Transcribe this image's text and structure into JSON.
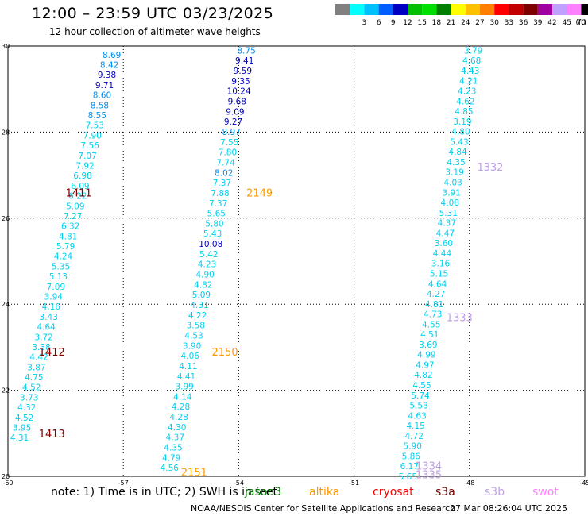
{
  "title": "12:00 – 23:59 UTC 03/23/2025",
  "subtitle": "12 hour collection of altimeter wave heights",
  "legend": {
    "unit": "(ft)",
    "entries": [
      {
        "label": "",
        "color": "#808080"
      },
      {
        "label": "3",
        "color": "#00ffff"
      },
      {
        "label": "6",
        "color": "#00c0ff"
      },
      {
        "label": "9",
        "color": "#0060ff"
      },
      {
        "label": "12",
        "color": "#0000c0"
      },
      {
        "label": "15",
        "color": "#00c000"
      },
      {
        "label": "18",
        "color": "#00e000"
      },
      {
        "label": "21",
        "color": "#008000"
      },
      {
        "label": "24",
        "color": "#ffff00"
      },
      {
        "label": "27",
        "color": "#ffc000"
      },
      {
        "label": "30",
        "color": "#ff8000"
      },
      {
        "label": "33",
        "color": "#ff0000"
      },
      {
        "label": "36",
        "color": "#c00000"
      },
      {
        "label": "39",
        "color": "#800000"
      },
      {
        "label": "42",
        "color": "#a000a0"
      },
      {
        "label": "45",
        "color": "#c0a0ff"
      },
      {
        "label": "70",
        "color": "#ff80ff"
      },
      {
        "label": "",
        "color": "#000000"
      }
    ]
  },
  "axes": {
    "lon_min": -60,
    "lon_max": -45,
    "lat_min": 20,
    "lat_max": 30,
    "x_ticks": [
      "-60",
      "-57",
      "-54",
      "-51",
      "-48",
      "-45"
    ],
    "y_ticks": [
      "20",
      "22",
      "24",
      "26",
      "28",
      "30"
    ],
    "grid": true
  },
  "colors": {
    "tiny": "#00d0f0",
    "small": "#0000c0",
    "pass_1411": "#800000",
    "pass_2149": "#ff9900",
    "pass_1332": "#c0a0e8"
  },
  "tracks": [
    {
      "start": [
        -57.3,
        29.8
      ],
      "end": [
        -59.7,
        20.9
      ],
      "values": [
        "8.69",
        "8.42",
        "9.38",
        "9.71",
        "8.60",
        "8.58",
        "8.55",
        "7.53",
        "7.90",
        "7.56",
        "7.07",
        "7.92",
        "6.98",
        "6.09",
        "6.22",
        "5.09",
        "7.27",
        "6.32",
        "4.81",
        "5.79",
        "4.24",
        "5.35",
        "5.13",
        "7.09",
        "3.94",
        "4.16",
        "3.43",
        "4.64",
        "3.72",
        "3.38",
        "4.42",
        "3.87",
        "4.75",
        "4.52",
        "3.73",
        "4.32",
        "4.52",
        "3.95",
        "4.31"
      ]
    },
    {
      "start": [
        -53.8,
        29.9
      ],
      "end": [
        -55.8,
        20.2
      ],
      "values": [
        "8.75",
        "9.41",
        "9.59",
        "9.35",
        "10.24",
        "9.68",
        "9.09",
        "9.27",
        "8.97",
        "7.55",
        "7.80",
        "7.74",
        "8.02",
        "7.37",
        "7.88",
        "7.37",
        "5.65",
        "5.80",
        "5.43",
        "10.08",
        "5.42",
        "4.23",
        "4.90",
        "4.82",
        "5.09",
        "4.31",
        "4.22",
        "3.58",
        "4.53",
        "3.90",
        "4.06",
        "4.11",
        "4.41",
        "3.99",
        "4.14",
        "4.28",
        "4.28",
        "4.30",
        "4.37",
        "4.35",
        "4.79",
        "4.56"
      ]
    },
    {
      "start": [
        -47.9,
        29.9
      ],
      "end": [
        -49.6,
        20.0
      ],
      "values": [
        "3.79",
        "4.68",
        "4.43",
        "4.21",
        "4.23",
        "4.62",
        "4.85",
        "3.19",
        "4.80",
        "5.43",
        "4.84",
        "4.35",
        "3.19",
        "4.03",
        "3.91",
        "4.08",
        "5.31",
        "4.37",
        "4.47",
        "3.60",
        "4.44",
        "3.16",
        "5.15",
        "4.64",
        "4.27",
        "4.81",
        "4.73",
        "4.55",
        "4.51",
        "3.69",
        "4.99",
        "4.97",
        "4.82",
        "4.55",
        "5.74",
        "5.53",
        "4.63",
        "4.15",
        "4.72",
        "5.90",
        "5.86",
        "6.17",
        "5.65"
      ]
    }
  ],
  "passes": [
    {
      "label": "1411",
      "lon": -58.5,
      "lat": 26.6,
      "color": "#800000"
    },
    {
      "label": "1412",
      "lon": -59.2,
      "lat": 22.9,
      "color": "#800000"
    },
    {
      "label": "1413",
      "lon": -59.2,
      "lat": 21.0,
      "color": "#800000"
    },
    {
      "label": "2149",
      "lon": -53.8,
      "lat": 26.6,
      "color": "#ff9900"
    },
    {
      "label": "2150",
      "lon": -54.7,
      "lat": 22.9,
      "color": "#ff9900"
    },
    {
      "label": "2151",
      "lon": -55.5,
      "lat": 20.1,
      "color": "#ff9900"
    },
    {
      "label": "1332",
      "lon": -47.8,
      "lat": 27.2,
      "color": "#c0a0e8"
    },
    {
      "label": "1333",
      "lon": -48.6,
      "lat": 23.7,
      "color": "#c0a0e8"
    },
    {
      "label": "1334",
      "lon": -49.4,
      "lat": 20.25,
      "color": "#c0a0e8"
    },
    {
      "label": "1335",
      "lon": -49.4,
      "lat": 20.05,
      "color": "#c0a0e8"
    }
  ],
  "footer": {
    "note": "note:  1) Time is in UTC;  2) SWH is in feet",
    "satellites": [
      {
        "name": "jason3",
        "color": "#008000"
      },
      {
        "name": "altika",
        "color": "#ff9900"
      },
      {
        "name": "cryosat",
        "color": "#ff0000"
      },
      {
        "name": "s3a",
        "color": "#800000"
      },
      {
        "name": "s3b",
        "color": "#c0a0e8"
      },
      {
        "name": "swot",
        "color": "#ff80ff"
      }
    ],
    "credit": "NOAA/NESDIS Center for Satellite Applications and Research",
    "timestamp": "27 Mar 08:26:04 UTC 2025"
  }
}
